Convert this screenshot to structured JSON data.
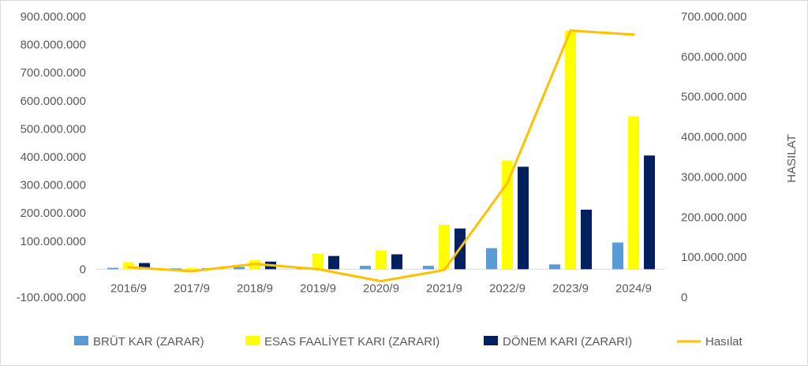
{
  "colors": {
    "brut": "#5b9bd5",
    "esas": "#ffff00",
    "donem": "#002060",
    "hasilat": "#ffc000",
    "axis": "#d9d9d9",
    "text": "#595959"
  },
  "chart_data": {
    "type": "bar",
    "categories": [
      "2016/9",
      "2017/9",
      "2018/9",
      "2019/9",
      "2020/9",
      "2021/9",
      "2022/9",
      "2023/9",
      "2024/9"
    ],
    "series": [
      {
        "name": "BRÜT KAR (ZARAR)",
        "type": "bar",
        "axis": "left",
        "color": "#5b9bd5",
        "values": [
          5000000,
          3000000,
          8000000,
          8000000,
          12000000,
          12000000,
          75000000,
          17000000,
          95000000
        ]
      },
      {
        "name": "ESAS FAALİYET KARI (ZARARI)",
        "type": "bar",
        "axis": "left",
        "color": "#ffff00",
        "values": [
          25000000,
          4000000,
          32000000,
          55000000,
          67000000,
          158000000,
          388000000,
          850000000,
          545000000
        ]
      },
      {
        "name": "DÖNEM KARI (ZARARI)",
        "type": "bar",
        "axis": "left",
        "color": "#002060",
        "values": [
          22000000,
          3000000,
          27000000,
          47000000,
          53000000,
          145000000,
          365000000,
          212000000,
          405000000
        ]
      },
      {
        "name": "Hasılat",
        "type": "line",
        "axis": "right",
        "color": "#ffc000",
        "values": [
          75000000,
          65000000,
          83000000,
          70000000,
          40000000,
          68000000,
          285000000,
          665000000,
          655000000
        ]
      }
    ],
    "left_axis": {
      "min": -100000000,
      "max": 900000000,
      "ticks": [
        "-100.000.000",
        "0",
        "100.000.000",
        "200.000.000",
        "300.000.000",
        "400.000.000",
        "500.000.000",
        "600.000.000",
        "700.000.000",
        "800.000.000",
        "900.000.000"
      ]
    },
    "right_axis": {
      "min": 0,
      "max": 700000000,
      "label": "HASILAT",
      "ticks": [
        "0",
        "100.000.000",
        "200.000.000",
        "300.000.000",
        "400.000.000",
        "500.000.000",
        "600.000.000",
        "700.000.000"
      ]
    },
    "legend_position": "bottom",
    "grid": false
  }
}
